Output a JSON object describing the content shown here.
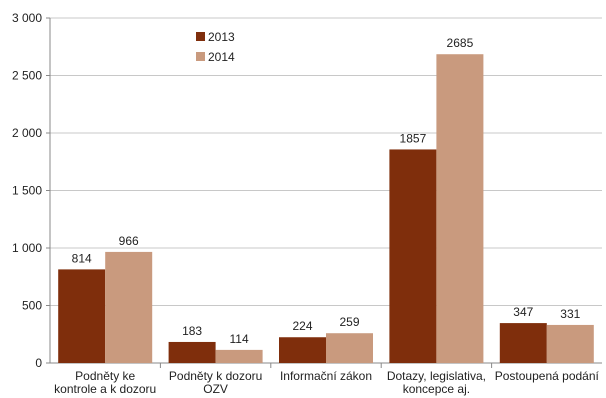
{
  "chart_data": {
    "type": "bar",
    "categories": [
      [
        "Podněty ke",
        "kontrole a k dozoru"
      ],
      [
        "Podněty k dozoru",
        "OZV"
      ],
      [
        "Informační zákon"
      ],
      [
        "Dotazy, legislativa,",
        "koncepce aj."
      ],
      [
        "Postoupená podání"
      ]
    ],
    "series": [
      {
        "name": "2013",
        "color": "#7f2e0c",
        "values": [
          814,
          183,
          224,
          1857,
          347
        ]
      },
      {
        "name": "2014",
        "color": "#c99a7e",
        "values": [
          966,
          114,
          259,
          2685,
          331
        ]
      }
    ],
    "ylim": [
      0,
      3000
    ],
    "yticks": [
      0,
      500,
      1000,
      1500,
      2000,
      2500,
      3000
    ],
    "ytick_labels": [
      "0",
      "500",
      "1 000",
      "1 500",
      "2 000",
      "2 500",
      "3 000"
    ],
    "grid": true,
    "legend_position": "top-center",
    "title": "",
    "xlabel": "",
    "ylabel": ""
  }
}
